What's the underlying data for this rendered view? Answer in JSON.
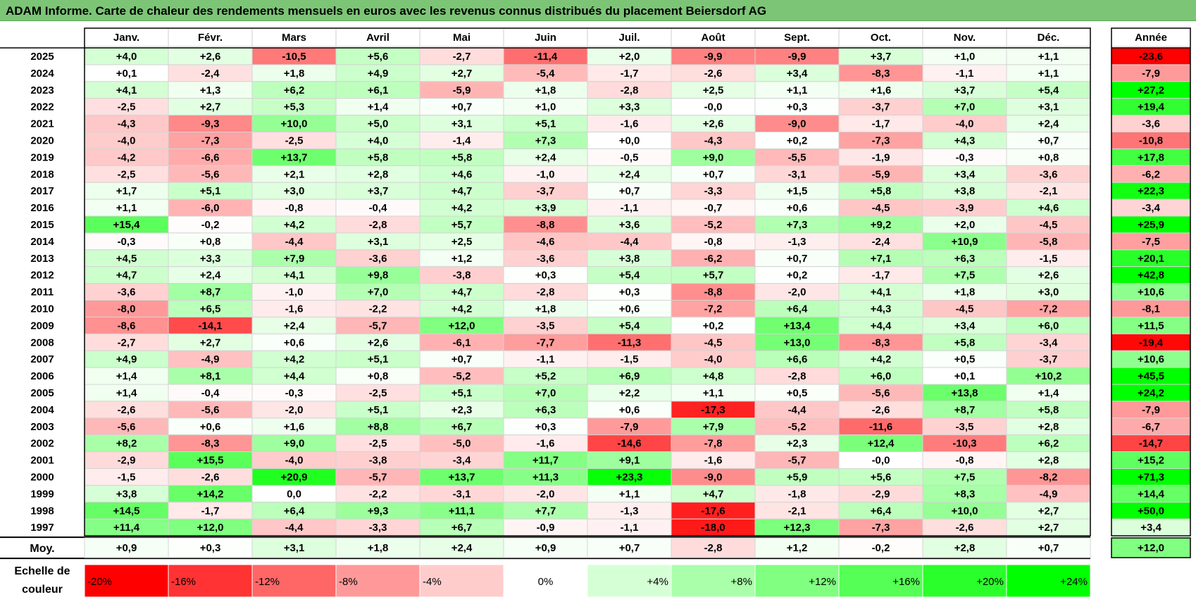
{
  "title": "ADAM Informe. Carte de chaleur des rendements mensuels en euros avec les revenus connus distribués du placement Beiersdorf AG",
  "chart_data": {
    "type": "heatmap",
    "columns": [
      "Janv.",
      "Févr.",
      "Mars",
      "Avril",
      "Mai",
      "Juin",
      "Juil.",
      "Août",
      "Sept.",
      "Oct.",
      "Nov.",
      "Déc."
    ],
    "annual_header": "Année",
    "rows": [
      {
        "year": "2025",
        "values": [
          "+4,0",
          "+2,6",
          "-10,5",
          "+5,6",
          "-2,7",
          "-11,4",
          "+2,0",
          "-9,9",
          "-9,9",
          "+3,7",
          "+1,0",
          "+1,1"
        ],
        "annual": "-23,6"
      },
      {
        "year": "2024",
        "values": [
          "+0,1",
          "-2,4",
          "+1,8",
          "+4,9",
          "+2,7",
          "-5,4",
          "-1,7",
          "-2,6",
          "+3,4",
          "-8,3",
          "-1,1",
          "+1,1"
        ],
        "annual": "-7,9"
      },
      {
        "year": "2023",
        "values": [
          "+4,1",
          "+1,3",
          "+6,2",
          "+6,1",
          "-5,9",
          "+1,8",
          "-2,8",
          "+2,5",
          "+1,1",
          "+1,6",
          "+3,7",
          "+5,4"
        ],
        "annual": "+27,2"
      },
      {
        "year": "2022",
        "values": [
          "-2,5",
          "+2,7",
          "+5,3",
          "+1,4",
          "+0,7",
          "+1,0",
          "+3,3",
          "-0,0",
          "+0,3",
          "-3,7",
          "+7,0",
          "+3,1"
        ],
        "annual": "+19,4"
      },
      {
        "year": "2021",
        "values": [
          "-4,3",
          "-9,3",
          "+10,0",
          "+5,0",
          "+3,1",
          "+5,1",
          "-1,6",
          "+2,6",
          "-9,0",
          "-1,7",
          "-4,0",
          "+2,4"
        ],
        "annual": "-3,6"
      },
      {
        "year": "2020",
        "values": [
          "-4,0",
          "-7,3",
          "-2,5",
          "+4,0",
          "-1,4",
          "+7,3",
          "+0,0",
          "-4,3",
          "+0,2",
          "-7,3",
          "+4,3",
          "+0,7"
        ],
        "annual": "-10,8"
      },
      {
        "year": "2019",
        "values": [
          "-4,2",
          "-6,6",
          "+13,7",
          "+5,8",
          "+5,8",
          "+2,4",
          "-0,5",
          "+9,0",
          "-5,5",
          "-1,9",
          "-0,3",
          "+0,8"
        ],
        "annual": "+17,8"
      },
      {
        "year": "2018",
        "values": [
          "-2,5",
          "-5,6",
          "+2,1",
          "+2,8",
          "+4,6",
          "-1,0",
          "+2,4",
          "+0,7",
          "-3,1",
          "-5,9",
          "+3,4",
          "-3,6"
        ],
        "annual": "-6,2"
      },
      {
        "year": "2017",
        "values": [
          "+1,7",
          "+5,1",
          "+3,0",
          "+3,7",
          "+4,7",
          "-3,7",
          "+0,7",
          "-3,3",
          "+1,5",
          "+5,8",
          "+3,8",
          "-2,1"
        ],
        "annual": "+22,3"
      },
      {
        "year": "2016",
        "values": [
          "+1,1",
          "-6,0",
          "-0,8",
          "-0,4",
          "+4,2",
          "+3,9",
          "-1,1",
          "-0,7",
          "+0,6",
          "-4,5",
          "-3,9",
          "+4,6"
        ],
        "annual": "-3,4"
      },
      {
        "year": "2015",
        "values": [
          "+15,4",
          "-0,2",
          "+4,2",
          "-2,8",
          "+5,7",
          "-8,8",
          "+3,6",
          "-5,2",
          "+7,3",
          "+9,2",
          "+2,0",
          "-4,5"
        ],
        "annual": "+25,9"
      },
      {
        "year": "2014",
        "values": [
          "-0,3",
          "+0,8",
          "-4,4",
          "+3,1",
          "+2,5",
          "-4,6",
          "-4,4",
          "-0,8",
          "-1,3",
          "-2,4",
          "+10,9",
          "-5,8"
        ],
        "annual": "-7,5"
      },
      {
        "year": "2013",
        "values": [
          "+4,5",
          "+3,3",
          "+7,9",
          "-3,6",
          "+1,2",
          "-3,6",
          "+3,8",
          "-6,2",
          "+0,7",
          "+7,1",
          "+6,3",
          "-1,5"
        ],
        "annual": "+20,1"
      },
      {
        "year": "2012",
        "values": [
          "+4,7",
          "+2,4",
          "+4,1",
          "+9,8",
          "-3,8",
          "+0,3",
          "+5,4",
          "+5,7",
          "+0,2",
          "-1,7",
          "+7,5",
          "+2,6"
        ],
        "annual": "+42,8"
      },
      {
        "year": "2011",
        "values": [
          "-3,6",
          "+8,7",
          "-1,0",
          "+7,0",
          "+4,7",
          "-2,8",
          "+0,3",
          "-8,8",
          "-2,0",
          "+4,1",
          "+1,8",
          "+3,0"
        ],
        "annual": "+10,6"
      },
      {
        "year": "2010",
        "values": [
          "-8,0",
          "+6,5",
          "-1,6",
          "-2,2",
          "+4,2",
          "+1,8",
          "+0,6",
          "-7,2",
          "+6,4",
          "+4,3",
          "-4,5",
          "-7,2"
        ],
        "annual": "-8,1"
      },
      {
        "year": "2009",
        "values": [
          "-8,6",
          "-14,1",
          "+2,4",
          "-5,7",
          "+12,0",
          "-3,5",
          "+5,4",
          "+0,2",
          "+13,4",
          "+4,4",
          "+3,4",
          "+6,0"
        ],
        "annual": "+11,5"
      },
      {
        "year": "2008",
        "values": [
          "-2,7",
          "+2,7",
          "+0,6",
          "+2,6",
          "-6,1",
          "-7,7",
          "-11,3",
          "-4,5",
          "+13,0",
          "-8,3",
          "+5,8",
          "-3,4"
        ],
        "annual": "-19,4"
      },
      {
        "year": "2007",
        "values": [
          "+4,9",
          "-4,9",
          "+4,2",
          "+5,1",
          "+0,7",
          "-1,1",
          "-1,5",
          "-4,0",
          "+6,6",
          "+4,2",
          "+0,5",
          "-3,7"
        ],
        "annual": "+10,6"
      },
      {
        "year": "2006",
        "values": [
          "+1,4",
          "+8,1",
          "+4,4",
          "+0,8",
          "-5,2",
          "+5,2",
          "+6,9",
          "+4,8",
          "-2,8",
          "+6,0",
          "+0,1",
          "+10,2"
        ],
        "annual": "+45,5"
      },
      {
        "year": "2005",
        "values": [
          "+1,4",
          "-0,4",
          "-0,3",
          "-2,5",
          "+5,1",
          "+7,0",
          "+2,2",
          "+1,1",
          "+0,5",
          "-5,6",
          "+13,8",
          "+1,4"
        ],
        "annual": "+24,2"
      },
      {
        "year": "2004",
        "values": [
          "-2,6",
          "-5,6",
          "-2,0",
          "+5,1",
          "+2,3",
          "+6,3",
          "+0,6",
          "-17,3",
          "-4,4",
          "-2,6",
          "+8,7",
          "+5,8"
        ],
        "annual": "-7,9"
      },
      {
        "year": "2003",
        "values": [
          "-5,6",
          "+0,6",
          "+1,6",
          "+8,8",
          "+6,7",
          "+0,3",
          "-7,9",
          "+7,9",
          "-5,2",
          "-11,6",
          "-3,5",
          "+2,8"
        ],
        "annual": "-6,7"
      },
      {
        "year": "2002",
        "values": [
          "+8,2",
          "-8,3",
          "+9,0",
          "-2,5",
          "-5,0",
          "-1,6",
          "-14,6",
          "-7,8",
          "+2,3",
          "+12,4",
          "-10,3",
          "+6,2"
        ],
        "annual": "-14,7"
      },
      {
        "year": "2001",
        "values": [
          "-2,9",
          "+15,5",
          "-4,0",
          "-3,8",
          "-3,4",
          "+11,7",
          "+9,1",
          "-1,6",
          "-5,7",
          "-0,0",
          "-0,8",
          "+2,8"
        ],
        "annual": "+15,2"
      },
      {
        "year": "2000",
        "values": [
          "-1,5",
          "-2,6",
          "+20,9",
          "-5,7",
          "+13,7",
          "+11,3",
          "+23,3",
          "-9,0",
          "+5,9",
          "+5,6",
          "+7,5",
          "-8,2"
        ],
        "annual": "+71,3"
      },
      {
        "year": "1999",
        "values": [
          "+3,8",
          "+14,2",
          "0,0",
          "-2,2",
          "-3,1",
          "-2,0",
          "+1,1",
          "+4,7",
          "-1,8",
          "-2,9",
          "+8,3",
          "-4,9"
        ],
        "annual": "+14,4"
      },
      {
        "year": "1998",
        "values": [
          "+14,5",
          "-1,7",
          "+6,4",
          "+9,3",
          "+11,1",
          "+7,7",
          "-1,3",
          "-17,6",
          "-2,1",
          "+6,4",
          "+10,0",
          "+2,7"
        ],
        "annual": "+50,0"
      },
      {
        "year": "1997",
        "values": [
          "+11,4",
          "+12,0",
          "-4,4",
          "-3,3",
          "+6,7",
          "-0,9",
          "-1,1",
          "-18,0",
          "+12,3",
          "-7,3",
          "-2,6",
          "+2,7"
        ],
        "annual": "+3,4"
      }
    ],
    "average": {
      "label": "Moy.",
      "values": [
        "+0,9",
        "+0,3",
        "+3,1",
        "+1,8",
        "+2,4",
        "+0,9",
        "+0,7",
        "-2,8",
        "+1,2",
        "-0,2",
        "+2,8",
        "+0,7"
      ],
      "annual": "+12,0"
    },
    "scale": {
      "label_line1": "Echelle de",
      "label_line2": "couleur",
      "stops": [
        "-20%",
        "-16%",
        "-12%",
        "-8%",
        "-4%",
        "0%",
        "+4%",
        "+8%",
        "+12%",
        "+16%",
        "+20%",
        "+24%"
      ]
    },
    "colors": {
      "negative": "#ff0000",
      "neutral": "#ffffff",
      "positive": "#00ff00",
      "title_bar": "#7cc576"
    }
  }
}
